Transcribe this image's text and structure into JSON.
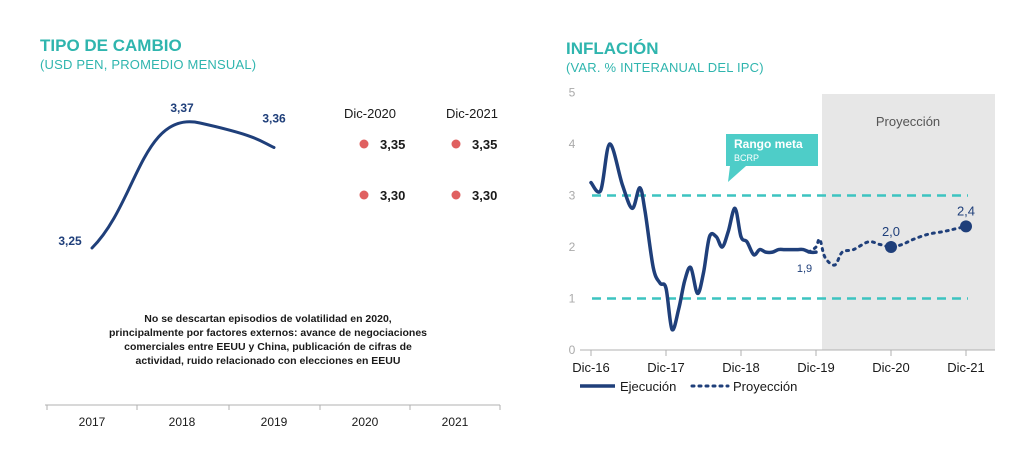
{
  "colors": {
    "navy": "#1f3f7a",
    "teal": "#2fb5ae",
    "teal_dash": "#3cc4c0",
    "dot": "#e06060",
    "shade": "#e7e7e7",
    "callout": "#4ecdc8",
    "axis": "#b0b0b0"
  },
  "left": {
    "title": "TIPO DE CAMBIO",
    "subtitle": "(USD PEN, PROMEDIO MENSUAL)",
    "note": "No se descartan episodios de volatilidad en 2020, principalmente por factores externos: avance de negociaciones comerciales entre EEUU y China, publicación de cifras de actividad, ruido relacionado con elecciones en EEUU",
    "forecast_headers": [
      "Dic-2020",
      "Dic-2021"
    ],
    "forecast_rows": [
      [
        "3,35",
        "3,35"
      ],
      [
        "3,30",
        "3,30"
      ]
    ]
  },
  "right": {
    "title": "INFLACIÓN",
    "subtitle": "(VAR. % INTERANUAL DEL IPC)",
    "projection_label": "Proyección",
    "callout_title": "Rango meta",
    "callout_sub": "BCRP",
    "legend": [
      "Ejecución",
      "Proyección"
    ]
  },
  "chart_data": [
    {
      "type": "line",
      "title": "TIPO DE CAMBIO",
      "categories": [
        "2017",
        "2018",
        "2019",
        "2020",
        "2021"
      ],
      "series": [
        {
          "name": "USD PEN",
          "x": [
            2017,
            2018,
            2019
          ],
          "values": [
            3.25,
            3.37,
            3.36
          ]
        }
      ],
      "data_labels": [
        "3,25",
        "3,37",
        "3,36"
      ],
      "ylim": [
        3.25,
        3.37
      ]
    },
    {
      "type": "line",
      "title": "INFLACIÓN",
      "ylim": [
        0,
        5
      ],
      "yticks": [
        "0",
        "1",
        "2",
        "3",
        "4",
        "5"
      ],
      "xticks": [
        "Dic-16",
        "Dic-17",
        "Dic-18",
        "Dic-19",
        "Dic-20",
        "Dic-21"
      ],
      "target_range": [
        1,
        3
      ],
      "series": [
        {
          "name": "Ejecución",
          "x": [
            0,
            0.13,
            0.25,
            0.42,
            0.55,
            0.65,
            0.72,
            0.83,
            0.92,
            1.0,
            1.08,
            1.17,
            1.25,
            1.33,
            1.42,
            1.5,
            1.58,
            1.67,
            1.75,
            1.83,
            1.92,
            2.0,
            2.08,
            2.17,
            2.25,
            2.33,
            2.42,
            2.5,
            2.58,
            2.67,
            2.75,
            2.83,
            2.92,
            3.0
          ],
          "values": [
            3.25,
            3.1,
            4.0,
            3.2,
            2.75,
            3.15,
            2.7,
            1.6,
            1.3,
            1.2,
            0.4,
            0.8,
            1.35,
            1.6,
            1.1,
            1.5,
            2.2,
            2.2,
            2.0,
            2.3,
            2.75,
            2.2,
            2.1,
            1.85,
            1.95,
            1.9,
            1.9,
            1.95,
            1.95,
            1.95,
            1.95,
            1.95,
            1.9,
            1.9
          ]
        },
        {
          "name": "Proyección",
          "x": [
            2.9,
            3.0,
            3.05,
            3.12,
            3.25,
            3.35,
            3.5,
            3.7,
            3.85,
            4.0,
            4.15,
            4.3,
            4.5,
            4.7,
            4.85,
            5.0
          ],
          "values": [
            1.9,
            2.0,
            2.15,
            1.8,
            1.65,
            1.9,
            1.95,
            2.1,
            2.05,
            2.0,
            2.05,
            2.15,
            2.25,
            2.3,
            2.35,
            2.4
          ]
        }
      ],
      "markers": [
        {
          "label": "1,9",
          "x": 2.9,
          "y": 1.9
        },
        {
          "label": "2,0",
          "x": 4.0,
          "y": 2.0
        },
        {
          "label": "2,4",
          "x": 5.0,
          "y": 2.4
        }
      ]
    }
  ]
}
